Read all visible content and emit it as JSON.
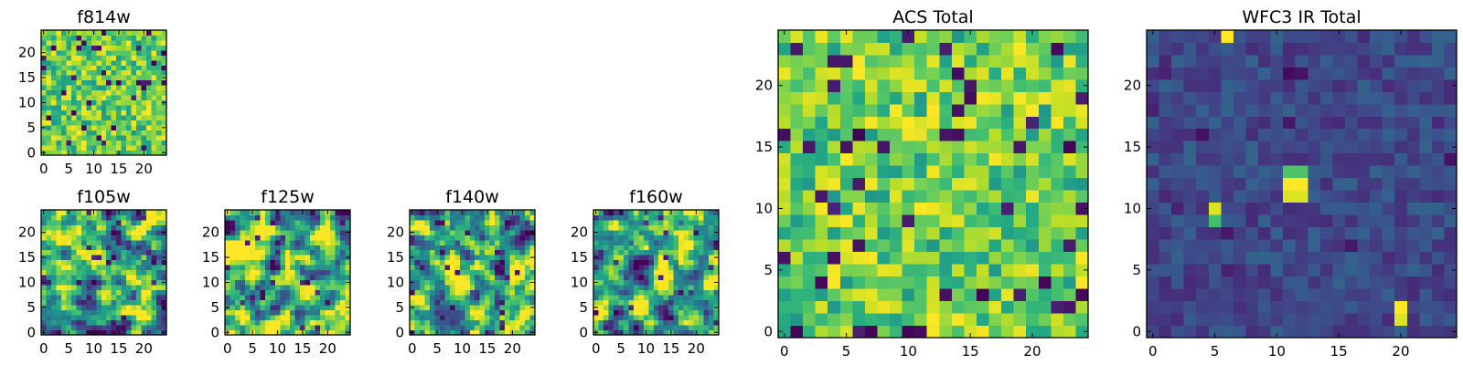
{
  "chart_data": [
    {
      "type": "heatmap",
      "title": "f814w",
      "grid_size": 25,
      "xlim": [
        -0.5,
        24.5
      ],
      "ylim": [
        -0.5,
        24.5
      ],
      "xticks": [
        0,
        5,
        10,
        15,
        20
      ],
      "yticks": [
        0,
        5,
        10,
        15,
        20
      ],
      "colormap": "viridis",
      "pattern": "noise",
      "seed": 11
    },
    {
      "type": "heatmap",
      "title": "f105w",
      "grid_size": 25,
      "xlim": [
        -0.5,
        24.5
      ],
      "ylim": [
        -0.5,
        24.5
      ],
      "xticks": [
        0,
        5,
        10,
        15,
        20
      ],
      "yticks": [
        0,
        5,
        10,
        15,
        20
      ],
      "colormap": "viridis",
      "pattern": "smooth",
      "seed": 22
    },
    {
      "type": "heatmap",
      "title": "f125w",
      "grid_size": 25,
      "xlim": [
        -0.5,
        24.5
      ],
      "ylim": [
        -0.5,
        24.5
      ],
      "xticks": [
        0,
        5,
        10,
        15,
        20
      ],
      "yticks": [
        0,
        5,
        10,
        15,
        20
      ],
      "colormap": "viridis",
      "pattern": "smooth",
      "seed": 33
    },
    {
      "type": "heatmap",
      "title": "f140w",
      "grid_size": 25,
      "xlim": [
        -0.5,
        24.5
      ],
      "ylim": [
        -0.5,
        24.5
      ],
      "xticks": [
        0,
        5,
        10,
        15,
        20
      ],
      "yticks": [
        0,
        5,
        10,
        15,
        20
      ],
      "colormap": "viridis",
      "pattern": "smooth",
      "seed": 44
    },
    {
      "type": "heatmap",
      "title": "f160w",
      "grid_size": 25,
      "xlim": [
        -0.5,
        24.5
      ],
      "ylim": [
        -0.5,
        24.5
      ],
      "xticks": [
        0,
        5,
        10,
        15,
        20
      ],
      "yticks": [
        0,
        5,
        10,
        15,
        20
      ],
      "colormap": "viridis",
      "pattern": "smooth",
      "seed": 55
    },
    {
      "type": "heatmap",
      "title": "ACS Total",
      "grid_size": 25,
      "xlim": [
        -0.5,
        24.5
      ],
      "ylim": [
        -0.5,
        24.5
      ],
      "xticks": [
        0,
        5,
        10,
        15,
        20
      ],
      "yticks": [
        0,
        5,
        10,
        15,
        20
      ],
      "colormap": "viridis",
      "pattern": "noise",
      "seed": 66
    },
    {
      "type": "heatmap",
      "title": "WFC3 IR Total",
      "grid_size": 25,
      "xlim": [
        -0.5,
        24.5
      ],
      "ylim": [
        -0.5,
        24.5
      ],
      "xticks": [
        0,
        5,
        10,
        15,
        20
      ],
      "yticks": [
        0,
        5,
        10,
        15,
        20
      ],
      "colormap": "viridis",
      "pattern": "sources",
      "seed": 77,
      "bright_spots": [
        {
          "x": 6,
          "y": 24,
          "value": 1.0
        },
        {
          "x": 11,
          "y": 12,
          "value": 1.0
        },
        {
          "x": 12,
          "y": 12,
          "value": 1.0
        },
        {
          "x": 11,
          "y": 11,
          "value": 0.95
        },
        {
          "x": 12,
          "y": 11,
          "value": 0.95
        },
        {
          "x": 11,
          "y": 13,
          "value": 0.72
        },
        {
          "x": 12,
          "y": 13,
          "value": 0.72
        },
        {
          "x": 5,
          "y": 10,
          "value": 0.95
        },
        {
          "x": 5,
          "y": 9,
          "value": 0.7
        },
        {
          "x": 20,
          "y": 2,
          "value": 1.0
        },
        {
          "x": 20,
          "y": 1,
          "value": 0.95
        }
      ]
    }
  ]
}
